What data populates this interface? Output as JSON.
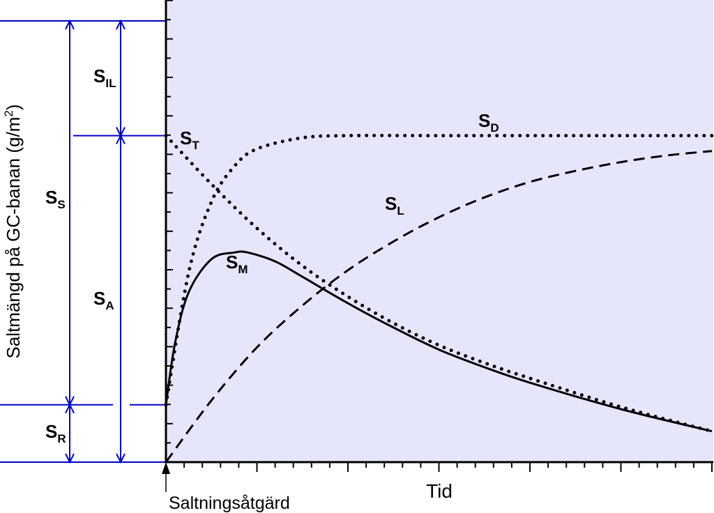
{
  "chart_data": {
    "type": "line",
    "xlabel": "Tid",
    "ylabel": "Saltmängd på GC-banan (g/m²)",
    "ylabel_main": "Saltmängd på GC-banan (g/m",
    "ylabel_sup": "2",
    "ylabel_end": ")",
    "annotation": "Saltningsåtgärd",
    "background_color": "#e6e6fa",
    "bracket_color": "#0000cc",
    "levels": {
      "S_R": 0.13,
      "S_A_top": 0.74,
      "S_S_top": 1.0
    },
    "series": [
      {
        "key": "S_D",
        "label_main": "S",
        "label_sub": "D",
        "style": "dotted",
        "x": [
          0,
          0.25,
          0.5,
          0.75,
          1,
          1.5,
          2,
          3,
          4,
          5,
          6
        ],
        "y": [
          0.13,
          0.43,
          0.59,
          0.67,
          0.71,
          0.735,
          0.74,
          0.74,
          0.74,
          0.74,
          0.74
        ]
      },
      {
        "key": "S_T",
        "label_main": "S",
        "label_sub": "T",
        "style": "dotted",
        "x": [
          0,
          0.5,
          1,
          1.5,
          2,
          2.5,
          3,
          3.5,
          4,
          5,
          6
        ],
        "y": [
          0.74,
          0.63,
          0.53,
          0.445,
          0.375,
          0.315,
          0.265,
          0.225,
          0.19,
          0.125,
          0.07
        ]
      },
      {
        "key": "S_L",
        "label_main": "S",
        "label_sub": "L",
        "style": "dashed",
        "x": [
          0,
          0.5,
          1,
          1.5,
          2,
          2.5,
          3,
          3.5,
          4,
          4.5,
          5,
          5.5,
          6
        ],
        "y": [
          0,
          0.14,
          0.26,
          0.355,
          0.435,
          0.5,
          0.555,
          0.6,
          0.635,
          0.66,
          0.68,
          0.695,
          0.705
        ]
      },
      {
        "key": "S_M",
        "label_main": "S",
        "label_sub": "M",
        "style": "solid",
        "x": [
          0,
          0.1,
          0.25,
          0.5,
          0.75,
          0.9,
          1.2,
          1.5,
          2,
          2.5,
          3,
          3.5,
          4,
          5,
          6
        ],
        "y": [
          0.13,
          0.27,
          0.385,
          0.46,
          0.475,
          0.475,
          0.455,
          0.42,
          0.36,
          0.305,
          0.255,
          0.215,
          0.18,
          0.12,
          0.07
        ]
      }
    ],
    "brackets": [
      {
        "key": "S_S",
        "label_main": "S",
        "label_sub": "S"
      },
      {
        "key": "S_IL",
        "label_main": "S",
        "label_sub": "IL"
      },
      {
        "key": "S_A",
        "label_main": "S",
        "label_sub": "A"
      },
      {
        "key": "S_R",
        "label_main": "S",
        "label_sub": "R"
      }
    ],
    "xlim": [
      0,
      6
    ],
    "ylim": [
      0,
      1.15
    ],
    "grid": false,
    "legend": "none"
  }
}
